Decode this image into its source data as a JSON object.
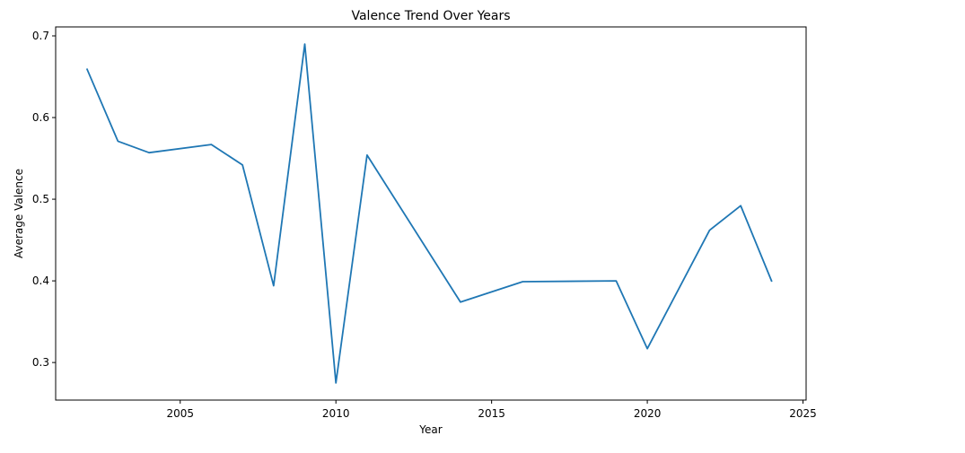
{
  "chart_data": {
    "type": "line",
    "title": "Valence Trend Over Years",
    "xlabel": "Year",
    "ylabel": "Average Valence",
    "xlim": [
      2001.0,
      2025.1
    ],
    "ylim": [
      0.254,
      0.711
    ],
    "x_ticks": [
      2005,
      2010,
      2015,
      2020,
      2025
    ],
    "y_ticks": [
      0.3,
      0.4,
      0.5,
      0.6,
      0.7
    ],
    "grid": false,
    "series": [
      {
        "color": "#1f77b4",
        "x": [
          2002,
          2003,
          2004,
          2006,
          2007,
          2008,
          2009,
          2010,
          2011,
          2014,
          2016,
          2019,
          2020,
          2022,
          2023,
          2024
        ],
        "values": [
          0.66,
          0.571,
          0.557,
          0.567,
          0.542,
          0.394,
          0.69,
          0.275,
          0.554,
          0.374,
          0.399,
          0.4,
          0.317,
          0.462,
          0.492,
          0.399
        ]
      }
    ]
  }
}
